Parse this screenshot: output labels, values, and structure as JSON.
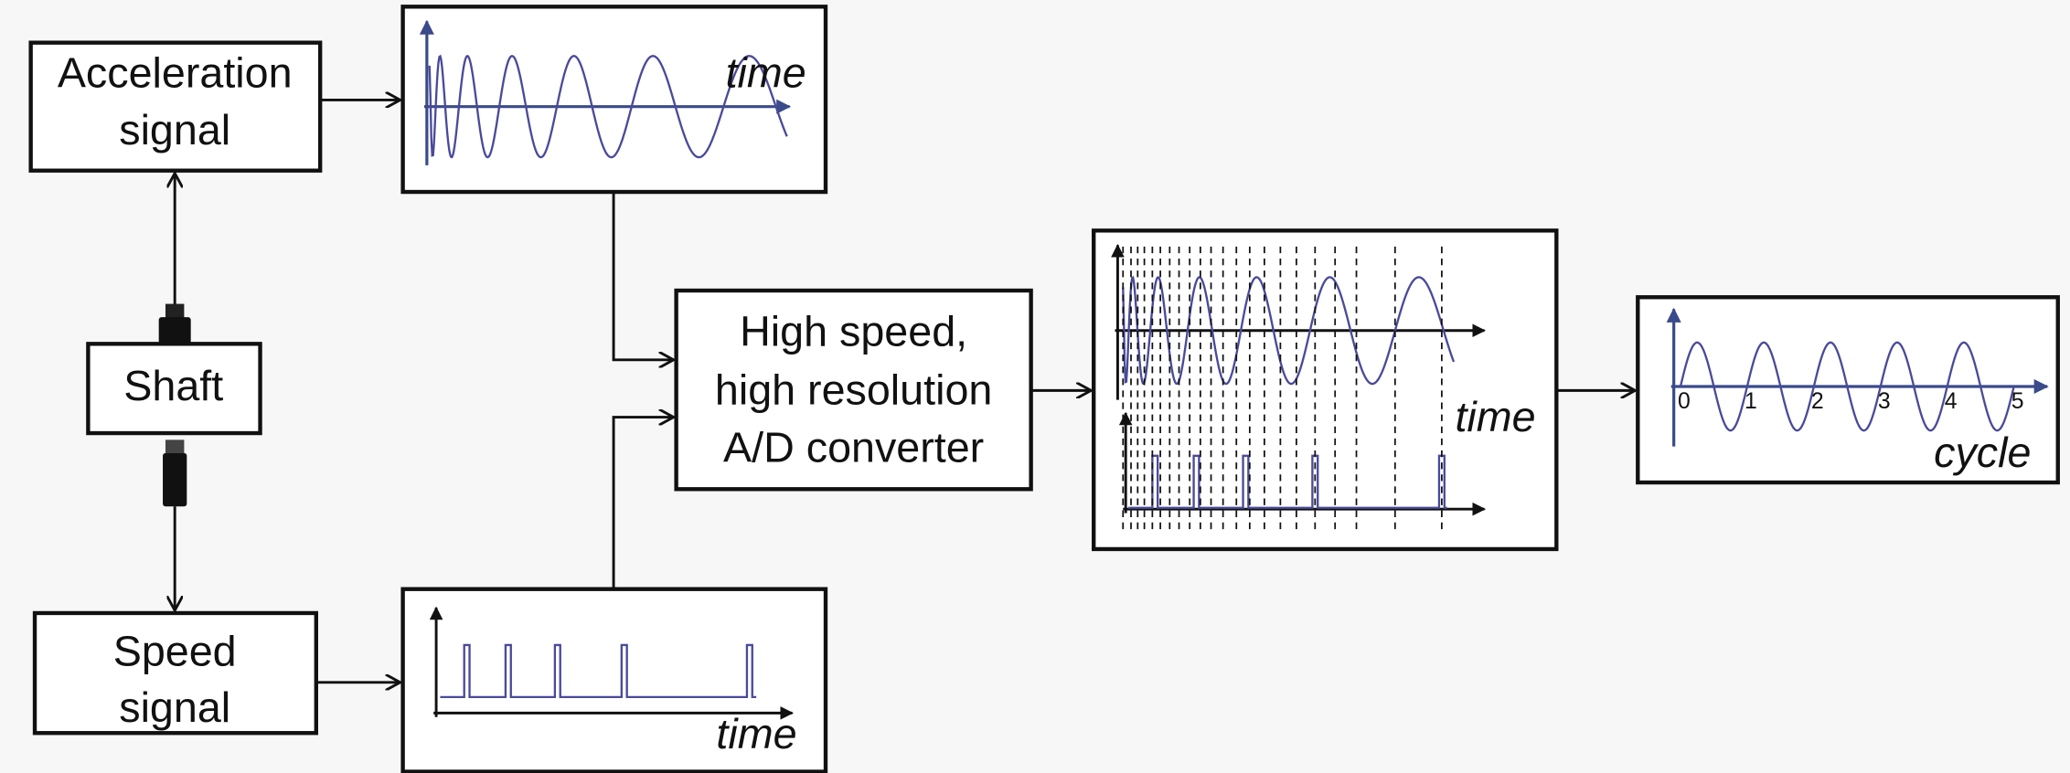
{
  "nodes": [
    {
      "label": [
        "Acceleration",
        "signal"
      ]
    },
    {
      "label": [
        "Shaft"
      ]
    },
    {
      "label": [
        "Speed",
        "signal"
      ]
    },
    {
      "label": [
        "High speed,",
        "high resolution",
        "A/D converter"
      ]
    }
  ],
  "plots": [
    {
      "axis_label": "time"
    },
    {
      "axis_label": "time"
    },
    {
      "axis_label": "time"
    },
    {
      "axis_label": "cycle",
      "ticks": [
        "0",
        "1",
        "2",
        "3",
        "4",
        "5"
      ]
    }
  ]
}
